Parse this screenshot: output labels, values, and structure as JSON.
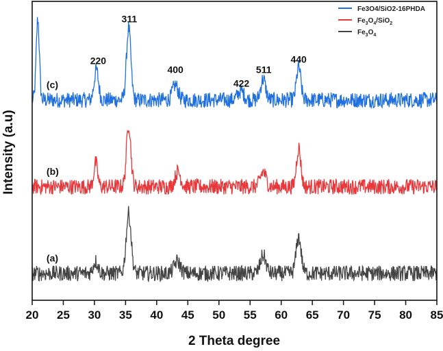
{
  "chart_data": {
    "type": "line",
    "title": "",
    "xlabel": "2 Theta degree",
    "ylabel": "Intensity (a.u)",
    "xlim": [
      20,
      85
    ],
    "ylim": [
      0,
      100
    ],
    "xticks": [
      20,
      25,
      30,
      35,
      40,
      45,
      50,
      55,
      60,
      65,
      70,
      75,
      80,
      85
    ],
    "grid": false,
    "legend_position": "top-right",
    "series": [
      {
        "name": "Fe3O4/SiO2-16PHDA",
        "legend_html": "Fe3O4/SiO2-16PHDA",
        "label": "(c)",
        "color": "#1f6fe0",
        "offset": 67,
        "noise": 2.6,
        "peaks": [
          {
            "x": 20.9,
            "h": 27,
            "w": 0.25
          },
          {
            "x": 30.3,
            "h": 10,
            "w": 0.35
          },
          {
            "x": 35.5,
            "h": 24,
            "w": 0.35
          },
          {
            "x": 43.0,
            "h": 5,
            "w": 0.45
          },
          {
            "x": 53.5,
            "h": 3,
            "w": 0.5
          },
          {
            "x": 57.1,
            "h": 7,
            "w": 0.4
          },
          {
            "x": 62.8,
            "h": 11,
            "w": 0.35
          }
        ]
      },
      {
        "name": "Fe3O4/SiO2",
        "legend_sub": [
          "Fe",
          "3",
          "O",
          "4",
          "/SiO",
          "2"
        ],
        "label": "(b)",
        "color": "#e8383c",
        "offset": 38,
        "noise": 2.6,
        "peaks": [
          {
            "x": 30.2,
            "h": 8,
            "w": 0.3
          },
          {
            "x": 35.5,
            "h": 21,
            "w": 0.35
          },
          {
            "x": 43.4,
            "h": 5,
            "w": 0.45
          },
          {
            "x": 57.1,
            "h": 5,
            "w": 0.45
          },
          {
            "x": 62.8,
            "h": 13,
            "w": 0.35
          }
        ]
      },
      {
        "name": "Fe3O4",
        "legend_sub": [
          "Fe",
          "3",
          "O",
          "4"
        ],
        "label": "(a)",
        "color": "#444444",
        "offset": 9,
        "noise": 2.6,
        "peaks": [
          {
            "x": 30.2,
            "h": 4,
            "w": 0.4
          },
          {
            "x": 35.5,
            "h": 20,
            "w": 0.4
          },
          {
            "x": 43.3,
            "h": 4,
            "w": 0.5
          },
          {
            "x": 57.1,
            "h": 6,
            "w": 0.45
          },
          {
            "x": 62.8,
            "h": 12,
            "w": 0.4
          }
        ]
      }
    ],
    "annotations": [
      {
        "text": "220",
        "x": 30.6,
        "y": 79
      },
      {
        "text": "311",
        "x": 35.6,
        "y": 93
      },
      {
        "text": "400",
        "x": 43.0,
        "y": 76
      },
      {
        "text": "422",
        "x": 53.6,
        "y": 71.5
      },
      {
        "text": "511",
        "x": 57.2,
        "y": 76
      },
      {
        "text": "440",
        "x": 62.8,
        "y": 79.5
      }
    ]
  }
}
